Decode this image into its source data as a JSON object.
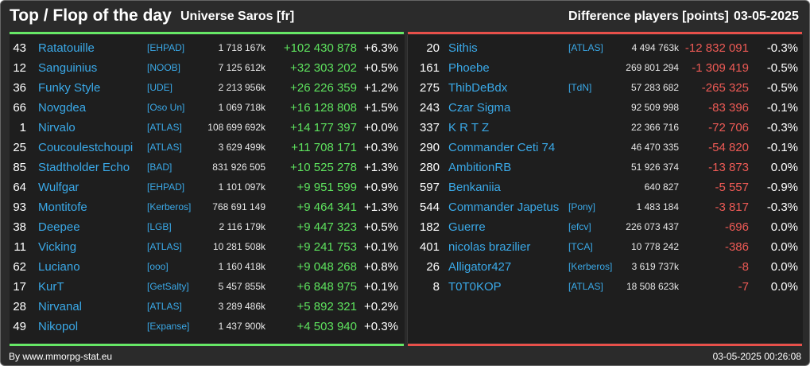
{
  "header": {
    "title": "Top / Flop of the day",
    "universe": "Universe Saros [fr]",
    "metric": "Difference players [points]",
    "date": "03-05-2025"
  },
  "colors": {
    "positive": "#5ee35e",
    "negative": "#ee5a55",
    "link": "#3aa9e8",
    "top_bar": "#66e866",
    "flop_bar": "#e8504a"
  },
  "top": [
    {
      "rank": "43",
      "name": "Ratatouille",
      "clan": "[EHPAD]",
      "points": "1 718 167k",
      "diff": "+102 430 878",
      "pct": "+6.3%"
    },
    {
      "rank": "12",
      "name": "Sanguinius",
      "clan": "[NOOB]",
      "points": "7 125 612k",
      "diff": "+32 303 202",
      "pct": "+0.5%"
    },
    {
      "rank": "36",
      "name": "Funky Style",
      "clan": "[UDE]",
      "points": "2 213 956k",
      "diff": "+26 226 359",
      "pct": "+1.2%"
    },
    {
      "rank": "66",
      "name": "Novgdea",
      "clan": "[Oso Un]",
      "points": "1 069 718k",
      "diff": "+16 128 808",
      "pct": "+1.5%"
    },
    {
      "rank": "1",
      "name": "Nirvalo",
      "clan": "[ATLAS]",
      "points": "108 699 692k",
      "diff": "+14 177 397",
      "pct": "+0.0%"
    },
    {
      "rank": "25",
      "name": "Coucoulestchoupi",
      "clan": "[ATLAS]",
      "points": "3 629 499k",
      "diff": "+11 708 171",
      "pct": "+0.3%"
    },
    {
      "rank": "85",
      "name": "Stadtholder Echo",
      "clan": "[BAD]",
      "points": "831 926 505",
      "diff": "+10 525 278",
      "pct": "+1.3%"
    },
    {
      "rank": "64",
      "name": "Wulfgar",
      "clan": "[EHPAD]",
      "points": "1 101 097k",
      "diff": "+9 951 599",
      "pct": "+0.9%"
    },
    {
      "rank": "93",
      "name": "Montitofe",
      "clan": "[Kerberos]",
      "points": "768 691 149",
      "diff": "+9 464 341",
      "pct": "+1.3%"
    },
    {
      "rank": "38",
      "name": "Deepee",
      "clan": "[LGB]",
      "points": "2 116 179k",
      "diff": "+9 447 323",
      "pct": "+0.5%"
    },
    {
      "rank": "11",
      "name": "Vicking",
      "clan": "[ATLAS]",
      "points": "10 281 508k",
      "diff": "+9 241 753",
      "pct": "+0.1%"
    },
    {
      "rank": "62",
      "name": "Luciano",
      "clan": "[ooo]",
      "points": "1 160 418k",
      "diff": "+9 048 268",
      "pct": "+0.8%"
    },
    {
      "rank": "17",
      "name": "KurT",
      "clan": "[GetSalty]",
      "points": "5 457 855k",
      "diff": "+6 848 975",
      "pct": "+0.1%"
    },
    {
      "rank": "28",
      "name": "Nirvanal",
      "clan": "[ATLAS]",
      "points": "3 289 486k",
      "diff": "+5 892 321",
      "pct": "+0.2%"
    },
    {
      "rank": "49",
      "name": "Nikopol",
      "clan": "[Expanse]",
      "points": "1 437 900k",
      "diff": "+4 503 940",
      "pct": "+0.3%"
    }
  ],
  "flop": [
    {
      "rank": "20",
      "name": "Sithis",
      "clan": "[ATLAS]",
      "points": "4 494 763k",
      "diff": "-12 832 091",
      "pct": "-0.3%"
    },
    {
      "rank": "161",
      "name": "Phoebe",
      "clan": "",
      "points": "269 801 294",
      "diff": "-1 309 419",
      "pct": "-0.5%"
    },
    {
      "rank": "275",
      "name": "ThibDeBdx",
      "clan": "[TdN]",
      "points": "57 283 682",
      "diff": "-265 325",
      "pct": "-0.5%"
    },
    {
      "rank": "243",
      "name": "Czar Sigma",
      "clan": "",
      "points": "92 509 998",
      "diff": "-83 396",
      "pct": "-0.1%"
    },
    {
      "rank": "337",
      "name": "K R T Z",
      "clan": "",
      "points": "22 366 716",
      "diff": "-72 706",
      "pct": "-0.3%"
    },
    {
      "rank": "290",
      "name": "Commander Ceti 74",
      "clan": "",
      "points": "46 470 335",
      "diff": "-54 820",
      "pct": "-0.1%"
    },
    {
      "rank": "280",
      "name": "AmbitionRB",
      "clan": "",
      "points": "51 926 374",
      "diff": "-13 873",
      "pct": "0.0%"
    },
    {
      "rank": "597",
      "name": "Benkaniia",
      "clan": "",
      "points": "640 827",
      "diff": "-5 557",
      "pct": "-0.9%"
    },
    {
      "rank": "544",
      "name": "Commander Japetus",
      "clan": "[Pony]",
      "points": "1 483 184",
      "diff": "-3 817",
      "pct": "-0.3%"
    },
    {
      "rank": "182",
      "name": "Guerre",
      "clan": "[efcv]",
      "points": "226 073 437",
      "diff": "-696",
      "pct": "0.0%"
    },
    {
      "rank": "401",
      "name": "nicolas brazilier",
      "clan": "[TCA]",
      "points": "10 778 242",
      "diff": "-386",
      "pct": "0.0%"
    },
    {
      "rank": "26",
      "name": "Alligator427",
      "clan": "[Kerberos]",
      "points": "3 619 737k",
      "diff": "-8",
      "pct": "0.0%"
    },
    {
      "rank": "8",
      "name": "T0T0KOP",
      "clan": "[ATLAS]",
      "points": "18 508 623k",
      "diff": "-7",
      "pct": "0.0%"
    }
  ],
  "footer": {
    "credit": "By www.mmorpg-stat.eu",
    "timestamp": "03-05-2025 00:26:08"
  }
}
